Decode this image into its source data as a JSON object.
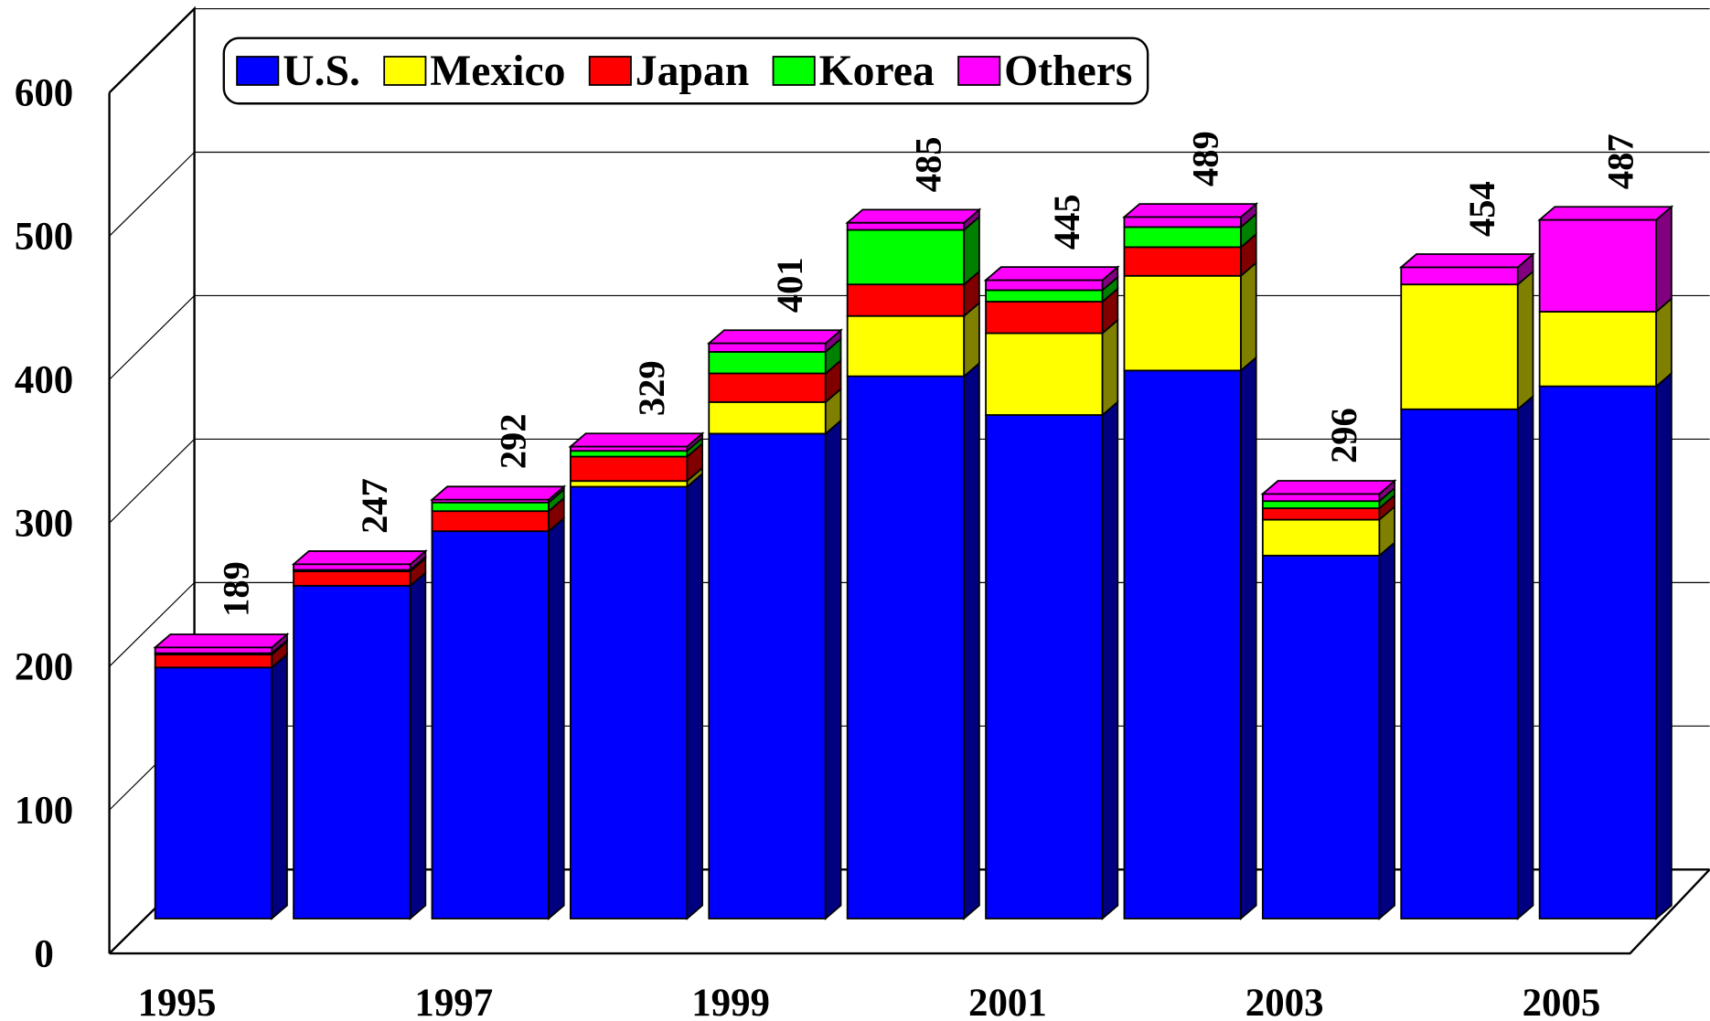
{
  "chart_data": {
    "type": "bar3d_stacked",
    "categories": [
      "1995",
      null,
      "1997",
      null,
      "1999",
      null,
      "2001",
      null,
      "2003",
      null,
      "2005"
    ],
    "series": [
      {
        "name": "U.S.",
        "color": "#0000ff",
        "values": [
          175,
          232,
          270,
          301,
          338,
          378,
          351,
          382,
          253,
          355,
          371
        ]
      },
      {
        "name": "Mexico",
        "color": "#ffff00",
        "values": [
          0,
          0,
          0,
          4,
          22,
          42,
          57,
          66,
          25,
          87,
          52
        ]
      },
      {
        "name": "Japan",
        "color": "#ff0000",
        "values": [
          9,
          10,
          14,
          17,
          20,
          22,
          22,
          20,
          8,
          0,
          0
        ]
      },
      {
        "name": "Korea",
        "color": "#00ff00",
        "values": [
          1,
          1,
          6,
          4,
          15,
          38,
          8,
          14,
          5,
          0,
          0
        ]
      },
      {
        "name": "Others",
        "color": "#ff00ff",
        "values": [
          4,
          4,
          2,
          3,
          6,
          5,
          7,
          7,
          5,
          12,
          64
        ]
      }
    ],
    "totals": [
      189,
      247,
      292,
      329,
      401,
      485,
      445,
      489,
      296,
      454,
      487
    ],
    "ylim": [
      0,
      600
    ],
    "yticks": [
      0,
      100,
      200,
      300,
      400,
      500,
      600
    ],
    "grid": true,
    "legend": "top"
  }
}
